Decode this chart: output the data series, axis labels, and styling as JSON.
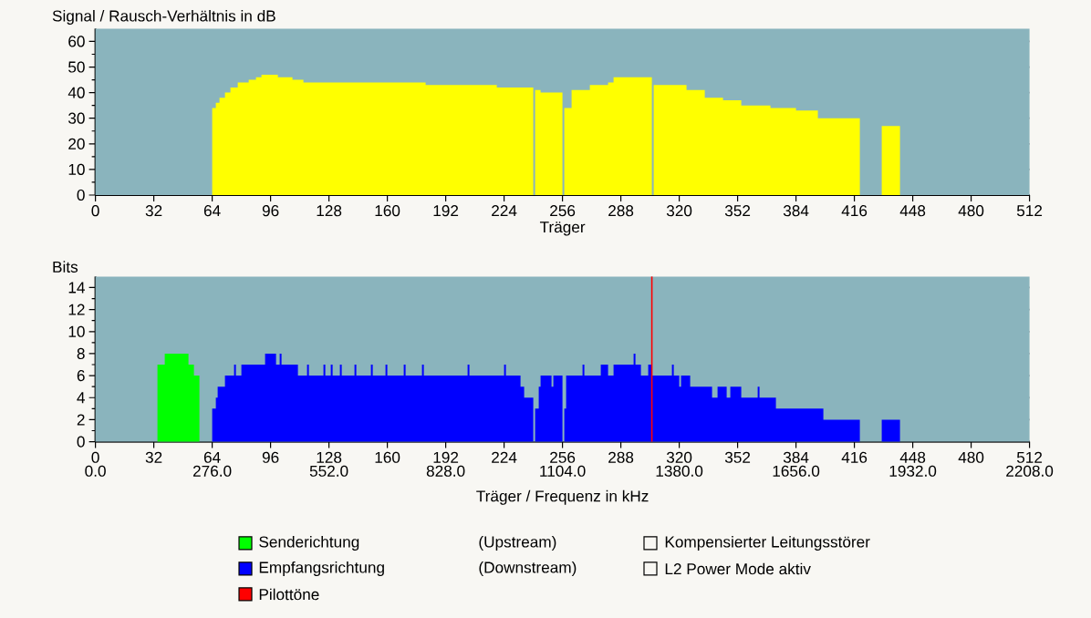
{
  "chart_data": [
    {
      "type": "area",
      "ylabel": "Signal / Rausch-Verhältnis in dB",
      "xlabel": "Träger",
      "xlim": [
        0,
        512
      ],
      "ylim": [
        0,
        65
      ],
      "xticks": [
        0,
        32,
        64,
        96,
        128,
        160,
        192,
        224,
        256,
        288,
        320,
        352,
        384,
        416,
        448,
        480,
        512
      ],
      "yticks": [
        0,
        {
          "value": 5,
          "label": null
        },
        10,
        {
          "value": 15,
          "label": null
        },
        20,
        {
          "value": 25,
          "label": null
        },
        30,
        {
          "value": 35,
          "label": null
        },
        40,
        {
          "value": 45,
          "label": null
        },
        50,
        {
          "value": 55,
          "label": null
        },
        60
      ],
      "grid": "y",
      "series": [
        {
          "color": "#ffff00",
          "x": [
            64,
            66,
            68,
            71,
            74,
            78,
            84,
            88,
            91,
            100,
            108,
            114,
            148,
            181,
            220,
            240,
            241,
            244,
            256,
            257,
            261,
            271,
            281,
            284,
            305,
            306,
            324,
            334,
            344,
            354,
            370,
            384,
            396,
            419,
            431,
            441
          ],
          "values": [
            34,
            36,
            38,
            40,
            42,
            44,
            45,
            46,
            47,
            46,
            45,
            44,
            44,
            43,
            42,
            0,
            41,
            40,
            0,
            34,
            41,
            43,
            44,
            46,
            0,
            43,
            41,
            38,
            37,
            35,
            34,
            33,
            30,
            0,
            27,
            0
          ]
        }
      ]
    },
    {
      "type": "area",
      "ylabel": "Bits",
      "xlabel": "Träger / Frequenz in kHz",
      "xlim": [
        0,
        512
      ],
      "ylim": [
        0,
        15
      ],
      "xticks": [
        0,
        32,
        64,
        96,
        128,
        160,
        192,
        224,
        256,
        288,
        320,
        352,
        384,
        416,
        448,
        480,
        512
      ],
      "x2lim": [
        0,
        2208
      ],
      "x2ticks": [
        {
          "value": 0,
          "label": "0.0"
        },
        {
          "value": 276,
          "label": "276.0"
        },
        {
          "value": 552,
          "label": "552.0"
        },
        {
          "value": 828,
          "label": "828.0"
        },
        {
          "value": 1104,
          "label": "1104.0"
        },
        {
          "value": 1380,
          "label": "1380.0"
        },
        {
          "value": 1656,
          "label": "1656.0"
        },
        {
          "value": 1932,
          "label": "1932.0"
        },
        {
          "value": 2208,
          "label": "2208.0"
        }
      ],
      "yticks": [
        0,
        {
          "value": 1,
          "label": null
        },
        2,
        {
          "value": 3,
          "label": null
        },
        4,
        {
          "value": 5,
          "label": null
        },
        6,
        {
          "value": 7,
          "label": null
        },
        8,
        {
          "value": 9,
          "label": null
        },
        10,
        {
          "value": 11,
          "label": null
        },
        12,
        {
          "value": 13,
          "label": null
        },
        14
      ],
      "grid": "y",
      "legend": "bottom",
      "series": [
        {
          "name": "Senderichtung",
          "color": "#00ff00",
          "x": [
            34,
            38,
            51,
            54,
            57
          ],
          "values": [
            7,
            8,
            7,
            6,
            0
          ]
        },
        {
          "name": "Empfangsrichtung",
          "color": "#0000ff",
          "x": [
            64,
            66,
            67,
            71,
            76,
            77,
            80,
            93,
            99,
            101,
            102,
            111,
            116,
            117,
            125,
            126,
            129,
            130,
            134,
            135,
            142,
            143,
            151,
            152,
            159,
            160,
            169,
            170,
            179,
            180,
            204,
            205,
            224,
            225,
            233,
            235,
            240,
            241,
            243,
            244,
            250,
            251,
            256,
            257,
            258,
            267,
            268,
            277,
            281,
            284,
            295,
            296,
            299,
            303,
            305,
            316,
            317,
            320,
            321,
            326,
            338,
            341,
            346,
            348,
            354,
            363,
            364,
            373,
            399,
            419,
            431,
            441
          ],
          "values": [
            3,
            4,
            5,
            6,
            7,
            6,
            7,
            8,
            7,
            8,
            7,
            6,
            7,
            6,
            7,
            6,
            7,
            6,
            7,
            6,
            7,
            6,
            7,
            6,
            7,
            6,
            7,
            6,
            7,
            6,
            7,
            6,
            7,
            6,
            5,
            4,
            0,
            3,
            5,
            6,
            5,
            6,
            0,
            3,
            6,
            7,
            6,
            7,
            6,
            7,
            8,
            7,
            6,
            7,
            6,
            7,
            6,
            5,
            6,
            5,
            4,
            5,
            4,
            5,
            4,
            5,
            4,
            3,
            2,
            0,
            2,
            0
          ]
        }
      ],
      "ref_lines": [
        {
          "axis": "x",
          "value": 305,
          "label": "Pilottöne",
          "color": "#ff0000"
        }
      ],
      "annotations": [
        "(Upstream)",
        "(Downstream)",
        "Kompensierter Leitungsstörer",
        "L2 Power Mode aktiv"
      ]
    }
  ]
}
